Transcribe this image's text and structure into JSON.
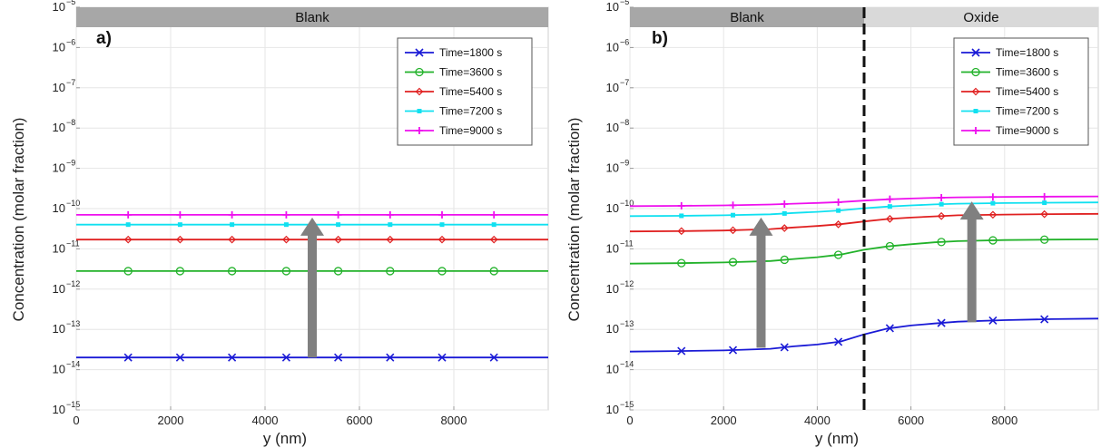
{
  "chart_data": [
    {
      "type": "line",
      "panel_label": "a)",
      "regions": [
        {
          "label": "Blank",
          "x_range": [
            0,
            10000
          ],
          "color": "#a7a7a7"
        }
      ],
      "xlabel": "y (nm)",
      "ylabel": "Concentration (molar fraction)",
      "xlim": [
        0,
        10000
      ],
      "ylim_exp": [
        -15,
        -5
      ],
      "y_scale": "log",
      "x_ticks": [
        0,
        2000,
        4000,
        6000,
        8000
      ],
      "y_tick_exponents": [
        -15,
        -14,
        -13,
        -12,
        -11,
        -10,
        -9,
        -8,
        -7,
        -6,
        -5
      ],
      "grid": true,
      "legend_position": "top-right",
      "marker_x": [
        1100,
        2200,
        3300,
        4450,
        5550,
        6650,
        7750,
        8850
      ],
      "arrows": [
        {
          "x": 5000,
          "y_from": 2e-14,
          "y_to": 6e-11,
          "color": "#808080"
        }
      ],
      "series": [
        {
          "name": "Time=1800 s",
          "color": "#1a1ad6",
          "marker": "x",
          "x": [
            0,
            10000
          ],
          "y": [
            2e-14,
            2e-14
          ]
        },
        {
          "name": "Time=3600 s",
          "color": "#22b22a",
          "marker": "o",
          "x": [
            0,
            10000
          ],
          "y": [
            2.8e-12,
            2.8e-12
          ]
        },
        {
          "name": "Time=5400 s",
          "color": "#e02020",
          "marker": "diamond",
          "x": [
            0,
            10000
          ],
          "y": [
            1.7e-11,
            1.7e-11
          ]
        },
        {
          "name": "Time=7200 s",
          "color": "#10e0f0",
          "marker": "dot",
          "x": [
            0,
            10000
          ],
          "y": [
            4e-11,
            4e-11
          ]
        },
        {
          "name": "Time=9000 s",
          "color": "#ee10ee",
          "marker": "plus",
          "x": [
            0,
            10000
          ],
          "y": [
            7e-11,
            7e-11
          ]
        }
      ]
    },
    {
      "type": "line",
      "panel_label": "b)",
      "regions": [
        {
          "label": "Blank",
          "x_range": [
            0,
            5000
          ],
          "color": "#a7a7a7"
        },
        {
          "label": "Oxide",
          "x_range": [
            5000,
            10000
          ],
          "color": "#d9d9d9"
        }
      ],
      "boundary_x": 5000,
      "xlabel": "y (nm)",
      "ylabel": "Concentration (molar fraction)",
      "xlim": [
        0,
        10000
      ],
      "ylim_exp": [
        -15,
        -5
      ],
      "y_scale": "log",
      "x_ticks": [
        0,
        2000,
        4000,
        6000,
        8000
      ],
      "y_tick_exponents": [
        -15,
        -14,
        -13,
        -12,
        -11,
        -10,
        -9,
        -8,
        -7,
        -6,
        -5
      ],
      "grid": true,
      "legend_position": "top-right",
      "marker_x": [
        1100,
        2200,
        3300,
        4450,
        5550,
        6650,
        7750,
        8850
      ],
      "arrows": [
        {
          "x": 2800,
          "y_from": 3.5e-14,
          "y_to": 6e-11,
          "color": "#808080"
        },
        {
          "x": 7300,
          "y_from": 1.5e-13,
          "y_to": 1.5e-10,
          "color": "#808080"
        }
      ],
      "series": [
        {
          "name": "Time=1800 s",
          "color": "#1a1ad6",
          "marker": "x",
          "x": [
            0,
            1000,
            2000,
            3000,
            3500,
            4000,
            4500,
            5000,
            5500,
            6000,
            6500,
            7000,
            8000,
            9000,
            10000
          ],
          "y": [
            2.8e-14,
            2.9e-14,
            3e-14,
            3.3e-14,
            3.8e-14,
            4.2e-14,
            5e-14,
            7.5e-14,
            1.05e-13,
            1.25e-13,
            1.4e-13,
            1.55e-13,
            1.7e-13,
            1.8e-13,
            1.85e-13
          ]
        },
        {
          "name": "Time=3600 s",
          "color": "#22b22a",
          "marker": "o",
          "x": [
            0,
            1000,
            2000,
            3000,
            3500,
            4000,
            4500,
            5000,
            5500,
            6000,
            6500,
            7000,
            8000,
            9000,
            10000
          ],
          "y": [
            4.3e-12,
            4.4e-12,
            4.6e-12,
            5e-12,
            5.6e-12,
            6.2e-12,
            7.2e-12,
            9.5e-12,
            1.15e-11,
            1.3e-11,
            1.45e-11,
            1.55e-11,
            1.65e-11,
            1.7e-11,
            1.72e-11
          ]
        },
        {
          "name": "Time=5400 s",
          "color": "#e02020",
          "marker": "diamond",
          "x": [
            0,
            1000,
            2000,
            3000,
            3500,
            4000,
            4500,
            5000,
            5500,
            6000,
            6500,
            7000,
            8000,
            9000,
            10000
          ],
          "y": [
            2.7e-11,
            2.75e-11,
            2.85e-11,
            3.1e-11,
            3.4e-11,
            3.7e-11,
            4.1e-11,
            4.8e-11,
            5.5e-11,
            6e-11,
            6.4e-11,
            6.8e-11,
            7.1e-11,
            7.3e-11,
            7.4e-11
          ]
        },
        {
          "name": "Time=7200 s",
          "color": "#10e0f0",
          "marker": "dot",
          "x": [
            0,
            1000,
            2000,
            3000,
            3500,
            4000,
            4500,
            5000,
            5500,
            6000,
            6500,
            7000,
            8000,
            9000,
            10000
          ],
          "y": [
            6.5e-11,
            6.6e-11,
            6.8e-11,
            7.2e-11,
            7.8e-11,
            8.3e-11,
            9e-11,
            1.02e-10,
            1.12e-10,
            1.2e-10,
            1.27e-10,
            1.32e-10,
            1.37e-10,
            1.4e-10,
            1.42e-10
          ]
        },
        {
          "name": "Time=9000 s",
          "color": "#ee10ee",
          "marker": "plus",
          "x": [
            0,
            1000,
            2000,
            3000,
            3500,
            4000,
            4500,
            5000,
            5500,
            6000,
            6500,
            7000,
            8000,
            9000,
            10000
          ],
          "y": [
            1.15e-10,
            1.17e-10,
            1.2e-10,
            1.26e-10,
            1.32e-10,
            1.38e-10,
            1.45e-10,
            1.58e-10,
            1.7e-10,
            1.78e-10,
            1.85e-10,
            1.9e-10,
            1.95e-10,
            1.98e-10,
            2e-10
          ]
        }
      ]
    }
  ]
}
